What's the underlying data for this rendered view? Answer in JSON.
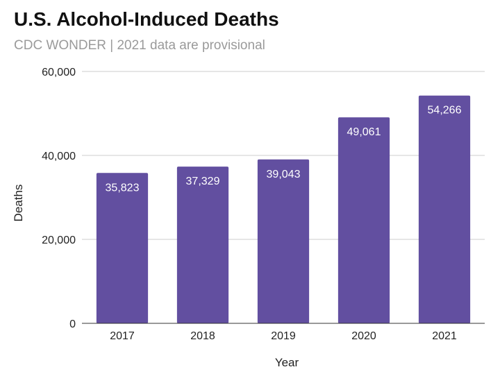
{
  "chart_data": {
    "type": "bar",
    "title": "U.S. Alcohol-Induced Deaths",
    "subtitle": "CDC WONDER | 2021 data are provisional",
    "xlabel": "Year",
    "ylabel": "Deaths",
    "categories": [
      "2017",
      "2018",
      "2019",
      "2020",
      "2021"
    ],
    "values": [
      35823,
      37329,
      39043,
      49061,
      54266
    ],
    "data_labels": [
      "35,823",
      "37,329",
      "39,043",
      "49,061",
      "54,266"
    ],
    "ylim": [
      0,
      60000
    ],
    "yticks": [
      0,
      20000,
      40000,
      60000
    ],
    "ytick_labels": [
      "0",
      "20,000",
      "40,000",
      "60,000"
    ],
    "grid": true,
    "legend": "none",
    "bar_color": "#624fa0"
  }
}
